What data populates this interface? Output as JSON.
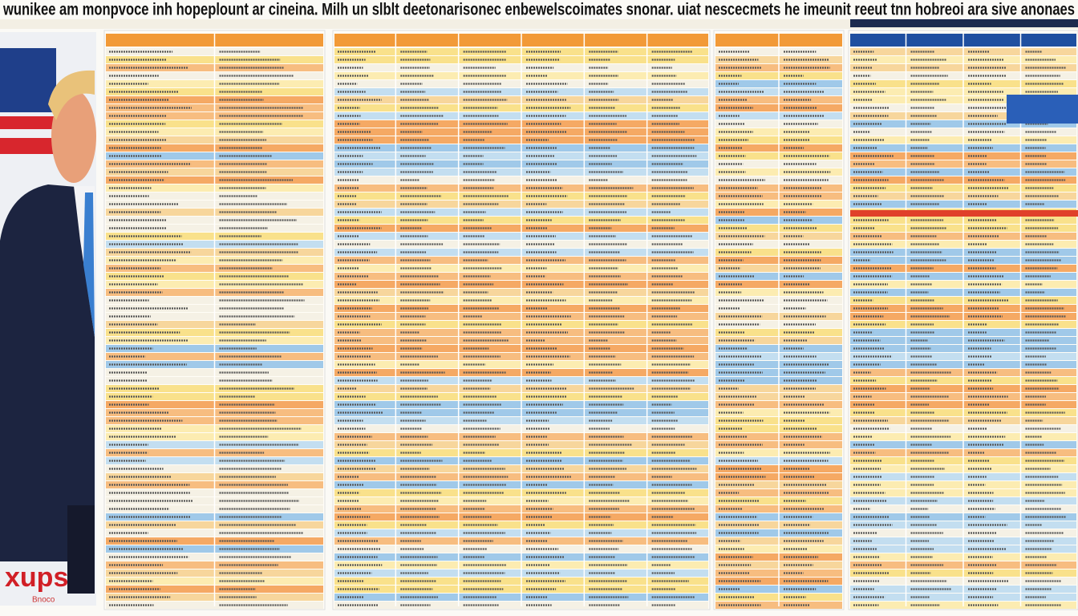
{
  "header": {
    "title": "wunikee am monpvoce inh hopeplount ar cineina. Milh un slblt deetonarisonec enbewelscoimates snonar. uiat nescecmets he imeunit reeut tnn hobreoi ara sive anonaes"
  },
  "photo": {
    "caption": "xups",
    "credit": "Bnoco"
  }
}
